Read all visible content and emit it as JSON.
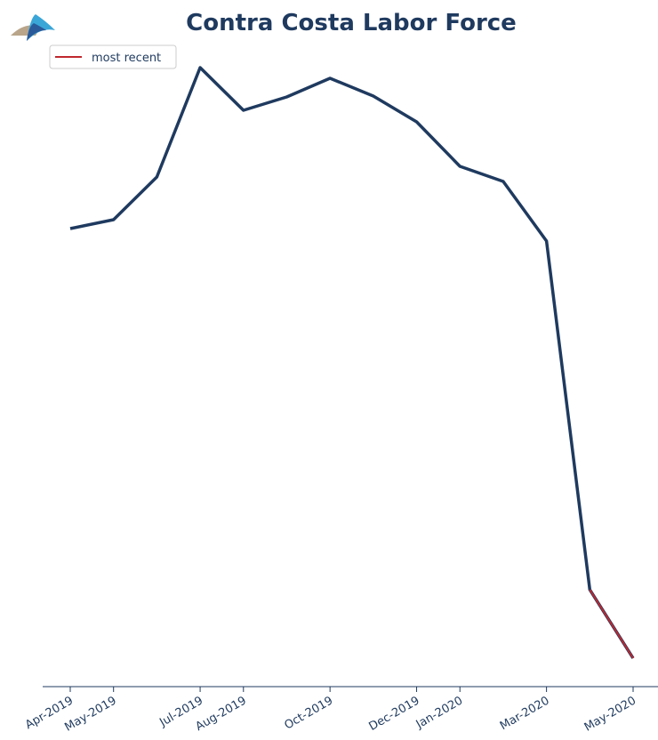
{
  "chart_data": {
    "type": "line",
    "title": "Contra Costa Labor Force",
    "categories": [
      "Apr-2019",
      "May-2019",
      null,
      "Jul-2019",
      "Aug-2019",
      null,
      "Oct-2019",
      null,
      "Dec-2019",
      "Jan-2020",
      null,
      "Mar-2020",
      null,
      "May-2020"
    ],
    "series": [
      {
        "color": "#1f3a5f",
        "values": [
          561.9,
          562.9,
          567.7,
          580.0,
          575.2,
          576.7,
          578.8,
          576.8,
          573.9,
          568.9,
          567.2,
          560.5,
          521.3,
          513.6
        ]
      }
    ],
    "highlight": {
      "name": "most recent",
      "color": "#c0282f",
      "count": 2
    },
    "ylim": [
      510,
      582
    ],
    "grid": false,
    "legend": "upper left"
  }
}
